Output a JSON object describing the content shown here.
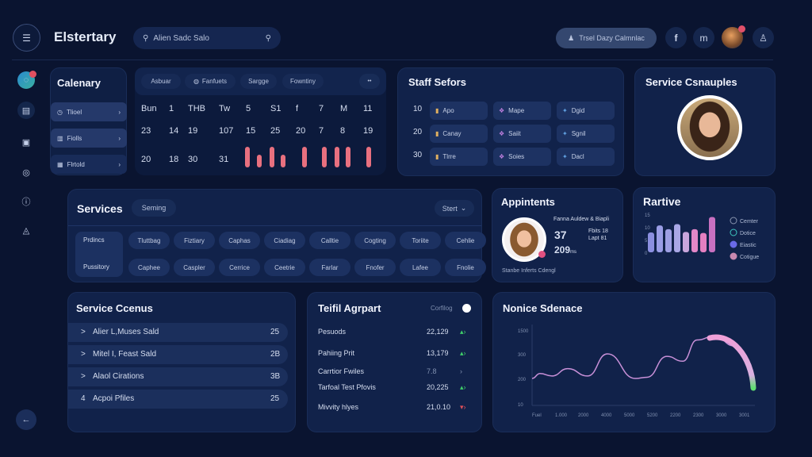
{
  "header": {
    "title": "Elstertary",
    "search_value": "Alien Sadc Salo",
    "action_label": "Trsel Dazy Calmnlac",
    "icons": [
      "facebook-icon",
      "m-icon",
      "avatar",
      "person-icon"
    ]
  },
  "sidebar": {
    "icons": [
      "app-logo-icon",
      "calendar-icon",
      "photo-icon",
      "chat-icon",
      "info-icon",
      "triangle-icon",
      "back-icon"
    ]
  },
  "calendar_side": {
    "title": "Calenary",
    "items": [
      {
        "label": "Tlioel",
        "icon": "clock-icon"
      },
      {
        "label": "Fiolls",
        "icon": "chart-icon"
      },
      {
        "label": "Flrtold",
        "icon": "gift-icon"
      }
    ]
  },
  "calendar": {
    "tabs": [
      "Asbuar",
      "Fanfuets",
      "Sargge",
      "Fowntiny"
    ],
    "more": "••",
    "rows": [
      [
        "Bun",
        "1",
        "THB",
        "Tw",
        "5",
        "S1",
        "f",
        "7",
        "M",
        "11"
      ],
      [
        "23",
        "14",
        "19",
        "107",
        "15",
        "25",
        "20",
        "7",
        "8",
        "19"
      ],
      [
        "20",
        "18",
        "30",
        "31"
      ]
    ],
    "bars": [
      1,
      0.6,
      1,
      0.6,
      1,
      1,
      1,
      1,
      1
    ]
  },
  "staff": {
    "title": "Staff Sefors",
    "rows": [
      {
        "num": "10",
        "items": [
          "Apo",
          "Mape",
          "Dgid"
        ]
      },
      {
        "num": "20",
        "items": [
          "Canay",
          "Saiit",
          "Sgnil"
        ]
      },
      {
        "num": "30",
        "items": [
          "Tlrre",
          "Soies",
          "Dacl"
        ]
      }
    ]
  },
  "samples": {
    "title": "Service Csnauples"
  },
  "services": {
    "title": "Services",
    "badge": "Seming",
    "dropdown": "Stert",
    "side_labels": [
      "Prdincs",
      "Pussitory"
    ],
    "row1": [
      "Tluttbag",
      "Fiztiary",
      "Caphas",
      "Ciadiag",
      "Calltie",
      "Cogting",
      "Toriite",
      "Cehlie"
    ],
    "row2": [
      "Caphee",
      "Caspler",
      "Cerrice",
      "Ceetrie",
      "Farlar",
      "Fnofer",
      "Lafee",
      "Fnolie"
    ]
  },
  "appointments": {
    "title": "Appintents",
    "subtitle": "Fanna Auldew & Biapli",
    "value1": "37",
    "value2": "209",
    "value2_unit": "ms",
    "side1": "Fbits 18",
    "side2": "Lapt 81",
    "footer": "Stanbe Inferts Cdengl"
  },
  "bar_panel": {
    "title": "Rartive"
  },
  "census": {
    "title": "Service Ccenus",
    "rows": [
      {
        "icon": ">",
        "label": "Alier L,Muses Sald",
        "value": "25"
      },
      {
        "icon": ">",
        "label": "Mitel I, Feast Sald",
        "value": "2B"
      },
      {
        "icon": ">",
        "label": "Alaol Cirations",
        "value": "3B"
      },
      {
        "icon": "4",
        "label": "Acpoi Pfiles",
        "value": "25"
      }
    ]
  },
  "total": {
    "title": "Teifil Agrpart",
    "toggle_label": "Corfilog",
    "rows": [
      {
        "label": "Pesuods",
        "value": "22,129",
        "trend": "up",
        "color": "#3fcf6a"
      },
      {
        "label": "Pahiing Prit",
        "value": "13,179",
        "trend": "up",
        "color": "#3fcf6a"
      },
      {
        "label": "Carrtior Fwiles",
        "value": "7.8",
        "trend": "none",
        "color": "#8090b0"
      },
      {
        "label": "Tarfoal Test Pfovis",
        "value": "20,225",
        "trend": "up",
        "color": "#3fcf6a"
      },
      {
        "label": "Mivvity hlyes",
        "value": "21,0.10",
        "trend": "down",
        "color": "#e0505a"
      }
    ]
  },
  "chart_data": [
    {
      "type": "bar",
      "title": "Rartive",
      "yticks": [
        "15",
        "10",
        "5",
        "0"
      ],
      "ylim": [
        0,
        15
      ],
      "values": [
        7.8,
        10.6,
        9.1,
        11.1,
        8,
        9.1,
        7.6,
        13.9
      ],
      "colors": [
        "#8b8fe0",
        "#9a9de6",
        "#9e9fe4",
        "#a9a7e6",
        "#c9a6dc",
        "#e387c8",
        "#e57fc0",
        "#c870c0"
      ],
      "legend": [
        {
          "name": "Cemter",
          "color": "#8a96b0"
        },
        {
          "name": "Dotice",
          "color": "#3ec8c0"
        },
        {
          "name": "Eiastic",
          "color": "#6a6ae8"
        },
        {
          "name": "Cotigue",
          "color": "#c888b0"
        }
      ],
      "legend_placement": "right"
    },
    {
      "type": "line",
      "title": "Nonice Sdenace",
      "yticks": [
        10,
        200,
        300,
        1500
      ],
      "xticks": [
        "Fuel",
        "1.000",
        "2000",
        "4000",
        "5000",
        "5200",
        "2200",
        "2300",
        "3000",
        "3001"
      ],
      "values": [
        200,
        220,
        210,
        240,
        210,
        300,
        200,
        205,
        290,
        270,
        1000,
        1200,
        700,
        260,
        140
      ],
      "colors": [
        "#c890d8",
        "#f0a0d8",
        "#60e070"
      ]
    }
  ]
}
